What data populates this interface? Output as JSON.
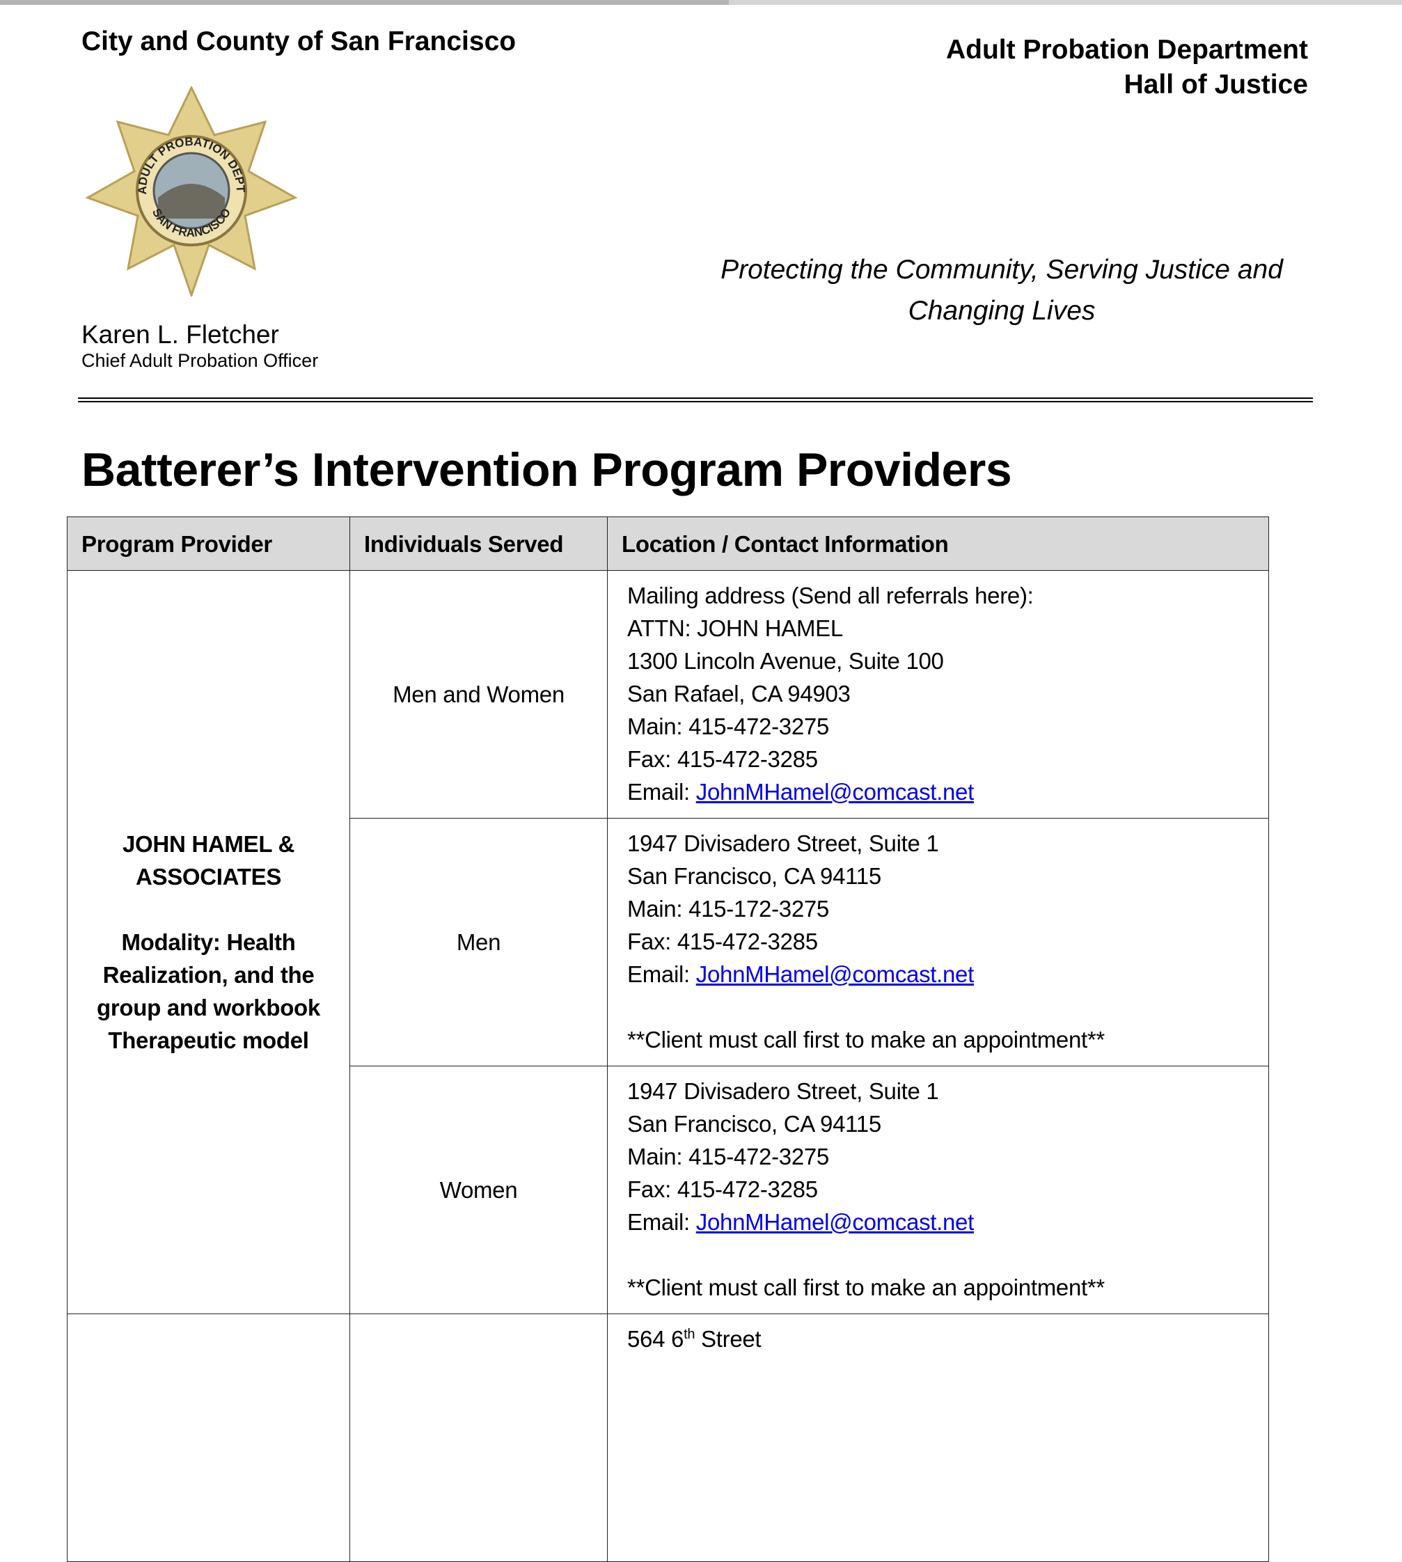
{
  "header": {
    "city": "City and County of San Francisco",
    "department": "Adult Probation Department",
    "building": "Hall of Justice",
    "tagline_line1": "Protecting the Community, Serving Justice and",
    "tagline_line2": "Changing Lives",
    "officer_name": "Karen L. Fletcher",
    "officer_title": "Chief Adult Probation Officer",
    "badge": {
      "top_text": "ADULT PROBATION DEPT.",
      "bottom_text": "SAN FRANCISCO",
      "color": "#d9c27a"
    }
  },
  "title": "Batterer’s Intervention Program Providers",
  "table": {
    "headers": [
      "Program Provider",
      "Individuals Served",
      "Location / Contact Information"
    ],
    "provider": {
      "name_line1": "JOHN HAMEL &",
      "name_line2": "ASSOCIATES",
      "modality_line1": "Modality: Health",
      "modality_line2": "Realization, and the",
      "modality_line3": "group and workbook",
      "modality_line4": "Therapeutic model"
    },
    "rows": [
      {
        "served": "Men and Women",
        "lines": [
          "Mailing address (Send all referrals here):",
          "ATTN: JOHN HAMEL",
          "1300 Lincoln Avenue, Suite 100",
          "San Rafael, CA 94903",
          "Main: 415-472-3275",
          "Fax:  415-472-3285"
        ],
        "email_label": "Email: ",
        "email": "JohnMHamel@comcast.net"
      },
      {
        "served": "Men",
        "lines": [
          "1947 Divisadero Street, Suite 1",
          "San Francisco, CA 94115",
          "Main: 415-172-3275",
          "Fax: 415-472-3285"
        ],
        "email_label": "Email: ",
        "email": "JohnMHamel@comcast.net",
        "note": "**Client must call first to make an appointment**"
      },
      {
        "served": "Women",
        "lines": [
          "1947 Divisadero Street, Suite 1",
          "San Francisco, CA 94115",
          "Main: 415-472-3275",
          "Fax:  415-472-3285"
        ],
        "email_label": "Email: ",
        "email": "JohnMHamel@comcast.net",
        "note": "**Client must call first to make an appointment**"
      },
      {
        "address_num": "564 6",
        "address_sup": "th",
        "address_rest": " Street"
      }
    ]
  },
  "colors": {
    "link": "#0000ee",
    "header_fill": "#d9d9d9"
  }
}
